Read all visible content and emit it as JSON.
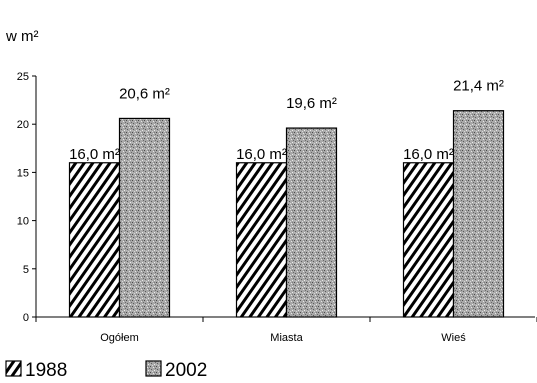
{
  "chart_data": {
    "type": "bar",
    "title": "",
    "ylabel": "w m²",
    "xlabel": "",
    "ylim": [
      0,
      25
    ],
    "yticks": [
      0,
      5,
      10,
      15,
      20,
      25
    ],
    "categories": [
      "Ogółem",
      "Miasta",
      "Wieś"
    ],
    "series": [
      {
        "name": "1988",
        "pattern": "hatch",
        "values": [
          16.0,
          16.0,
          16.0
        ],
        "labels": [
          "16,0 m²",
          "16,0 m²",
          "16,0 m²"
        ]
      },
      {
        "name": "2002",
        "pattern": "speckle",
        "values": [
          20.6,
          19.6,
          21.4
        ],
        "labels": [
          "20,6 m²",
          "19,6 m²",
          "21,4 m²"
        ]
      }
    ],
    "legend_position": "bottom-left",
    "grid": false
  }
}
